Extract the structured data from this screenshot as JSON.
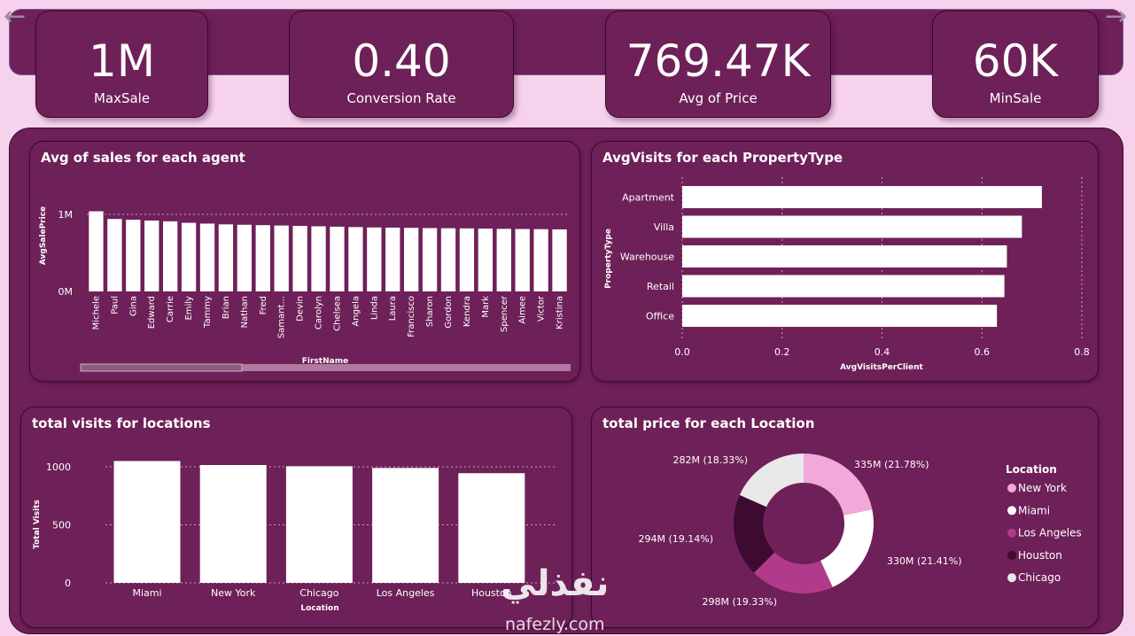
{
  "kpis": [
    {
      "value": "1M",
      "label": "MaxSale"
    },
    {
      "value": "0.40",
      "label": "Conversion Rate"
    },
    {
      "value": "769.47K",
      "label": "Avg of Price"
    },
    {
      "value": "60K",
      "label": "MinSale"
    }
  ],
  "nav": {
    "prev": "←",
    "next": "→"
  },
  "watermark": {
    "arabic": "نفذلي",
    "latin": "nafezly.com"
  },
  "chart_data": [
    {
      "type": "bar",
      "title": "Avg of sales for each agent",
      "xlabel": "FirstName",
      "ylabel": "AvgSalePrice",
      "ytick_labels": [
        "1M",
        "0M"
      ],
      "categories": [
        "Michele",
        "Paul",
        "Gina",
        "Edward",
        "Carrie",
        "Emily",
        "Tammy",
        "Brian",
        "Nathan",
        "Fred",
        "Samant...",
        "Devin",
        "Carolyn",
        "Chelsea",
        "Angela",
        "Linda",
        "Laura",
        "Francisco",
        "Sharon",
        "Gordon",
        "Kendra",
        "Mark",
        "Spencer",
        "Aimee",
        "Victor",
        "Kristina"
      ],
      "values": [
        1040000,
        940000,
        930000,
        920000,
        910000,
        890000,
        880000,
        870000,
        865000,
        860000,
        855000,
        850000,
        845000,
        840000,
        835000,
        830000,
        828000,
        825000,
        822000,
        820000,
        818000,
        815000,
        812000,
        810000,
        808000,
        805000
      ],
      "ylim": [
        0,
        1200000
      ],
      "grid": true
    },
    {
      "type": "bar",
      "orientation": "horizontal",
      "title": "AvgVisits for each PropertyType",
      "xlabel": "AvgVisitsPerClient",
      "ylabel": "PropertyType",
      "categories": [
        "Apartment",
        "Villa",
        "Warehouse",
        "Retail",
        "Office"
      ],
      "values": [
        0.72,
        0.68,
        0.65,
        0.645,
        0.63
      ],
      "xticks": [
        "0.0",
        "0.2",
        "0.4",
        "0.6",
        "0.8"
      ],
      "xlim": [
        0,
        0.8
      ],
      "grid": true
    },
    {
      "type": "bar",
      "title": "total visits for locations",
      "xlabel": "Location",
      "ylabel": "Total Visits",
      "categories": [
        "Miami",
        "New York",
        "Chicago",
        "Los Angeles",
        "Houston"
      ],
      "values": [
        1050,
        1015,
        1005,
        990,
        945
      ],
      "yticks": [
        "0",
        "500",
        "1000"
      ],
      "ylim": [
        0,
        1100
      ],
      "grid": true
    },
    {
      "type": "pie",
      "donut": true,
      "title": "total price for each Location",
      "legend_title": "Location",
      "legend_placement": "right",
      "slices": [
        {
          "name": "New York",
          "value": 335,
          "label": "335M (21.78%)",
          "color": "#f0a9d8"
        },
        {
          "name": "Miami",
          "value": 330,
          "label": "330M (21.41%)",
          "color": "#ffffff"
        },
        {
          "name": "Los Angeles",
          "value": 298,
          "label": "298M (19.33%)",
          "color": "#b23a8c"
        },
        {
          "name": "Houston",
          "value": 294,
          "label": "294M (19.14%)",
          "color": "#3d0a30"
        },
        {
          "name": "Chicago",
          "value": 282,
          "label": "282M (18.33%)",
          "color": "#e8e8e8"
        }
      ]
    }
  ]
}
